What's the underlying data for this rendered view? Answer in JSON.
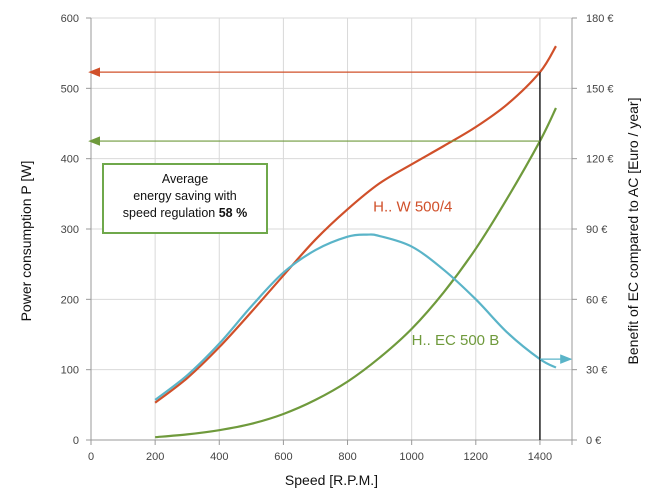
{
  "chart_data": {
    "type": "line",
    "xlabel": "Speed [R.P.M.]",
    "ylabel": "Power consumption P [W]",
    "y2label": "Benefit of EC compared to AC [Euro / year]",
    "xlim": [
      0,
      1500
    ],
    "ylim": [
      0,
      600
    ],
    "y2lim": [
      0,
      180
    ],
    "x_ticks": [
      "0",
      "200",
      "400",
      "600",
      "800",
      "1000",
      "1200",
      "1400"
    ],
    "y_ticks": [
      "0",
      "100",
      "200",
      "300",
      "400",
      "500",
      "600"
    ],
    "y2_ticks": [
      "0 €",
      "30 €",
      "60 €",
      "90 €",
      "120 €",
      "150 €",
      "180 €"
    ],
    "grid": true,
    "colors": {
      "ac": "#d0502a",
      "ec": "#6f9a3c",
      "benefit": "#5ab4c8",
      "grid": "#d9d9d9",
      "annotation_border": "#6fa84b",
      "marker_line": "#222222"
    },
    "series": [
      {
        "name": "H.. W 500/4",
        "axis": "left",
        "x": [
          200,
          300,
          400,
          500,
          600,
          700,
          800,
          900,
          1000,
          1100,
          1200,
          1300,
          1400,
          1450
        ],
        "values": [
          53,
          88,
          132,
          182,
          234,
          285,
          328,
          365,
          392,
          418,
          445,
          478,
          523,
          560
        ]
      },
      {
        "name": "H.. EC 500 B",
        "axis": "left",
        "x": [
          200,
          300,
          400,
          500,
          600,
          700,
          800,
          900,
          1000,
          1100,
          1200,
          1300,
          1400,
          1450
        ],
        "values": [
          4,
          8,
          14,
          23,
          37,
          57,
          83,
          117,
          158,
          210,
          272,
          345,
          425,
          472
        ]
      },
      {
        "name": "",
        "axis": "left",
        "x": [
          200,
          300,
          400,
          500,
          600,
          700,
          800,
          860,
          900,
          1000,
          1100,
          1200,
          1300,
          1400,
          1450
        ],
        "values": [
          57,
          92,
          137,
          190,
          238,
          270,
          289,
          292,
          290,
          275,
          242,
          200,
          152,
          115,
          103
        ]
      }
    ],
    "reference_lines": {
      "vertical_x": 1400,
      "ac_level": 523,
      "ec_level": 425,
      "benefit_level": 115
    },
    "annotation": {
      "line1": "Average",
      "line2": "energy saving with",
      "line3_prefix": "speed regulation ",
      "line3_bold": "58 %"
    }
  }
}
